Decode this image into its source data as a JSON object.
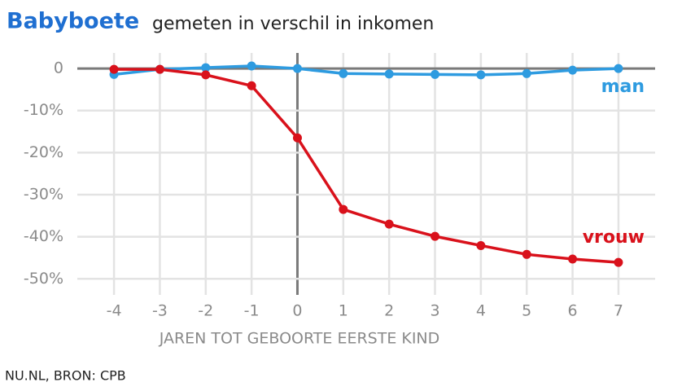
{
  "chart_data": {
    "type": "line",
    "title": "Babyboete",
    "subtitle": "gemeten in verschil in inkomen",
    "x_label": "JAREN TOT GEBOORTE EERSTE KIND",
    "source": "NU.NL, BRON: CPB",
    "x": [
      -4,
      -3,
      -2,
      -1,
      0,
      1,
      2,
      3,
      4,
      5,
      6,
      7
    ],
    "xlim": [
      -4.8,
      7.8
    ],
    "xticks": [
      -4,
      -3,
      -2,
      -1,
      0,
      1,
      2,
      3,
      4,
      5,
      6,
      7
    ],
    "ylim": [
      -51.5,
      3.7
    ],
    "yticks": [
      0,
      {
        "value": -10,
        "label": "-10%"
      },
      {
        "value": -20,
        "label": "-20%"
      },
      {
        "value": -30,
        "label": "-30%"
      },
      {
        "value": -40,
        "label": "-40%"
      },
      {
        "value": -50,
        "label": "-50%"
      }
    ],
    "grid": true,
    "series": [
      {
        "name": "man",
        "color": "#2e9be0",
        "values": [
          -1.4,
          -0.2,
          0.2,
          0.6,
          0,
          -1.2,
          -1.3,
          -1.4,
          -1.5,
          -1.2,
          -0.4,
          0
        ]
      },
      {
        "name": "vrouw",
        "color": "#d9111b",
        "values": [
          -0.2,
          -0.2,
          -1.5,
          -4.1,
          -16.5,
          -33.5,
          -37,
          -39.9,
          -42.1,
          -44.2,
          -45.3,
          -46.1
        ]
      }
    ]
  }
}
